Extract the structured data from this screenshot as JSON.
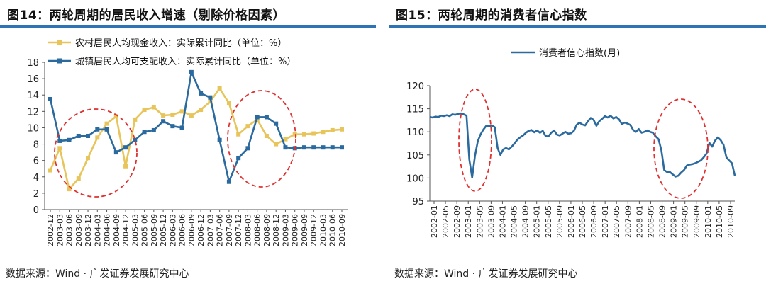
{
  "left": {
    "title": "图14：两轮周期的居民收入增速（剔除价格因素）",
    "source": "数据来源：Wind · 广发证券发展研究中心"
  },
  "right": {
    "title": "图15：两轮周期的消费者信心指数",
    "source": "数据来源：Wind · 广发证券发展研究中心"
  },
  "colors": {
    "rural": "#e8c55a",
    "urban": "#2b6a9e",
    "confidence": "#2b6a9e",
    "circle": "#e03030",
    "title_rule": "#2e74b5"
  },
  "chart_data": [
    {
      "type": "line",
      "title": "图14：两轮周期的居民收入增速（剔除价格因素）",
      "legend_position": "top-left",
      "ylim": [
        0,
        18
      ],
      "yticks": [
        0,
        2,
        4,
        6,
        8,
        10,
        12,
        14,
        16,
        18
      ],
      "x_tick_labels": [
        "2002-12",
        "2003-03",
        "2003-06",
        "2003-09",
        "2003-12",
        "2004-03",
        "2004-06",
        "2004-09",
        "2004-12",
        "2005-03",
        "2005-06",
        "2005-09",
        "2005-12",
        "2006-03",
        "2006-06",
        "2006-09",
        "2006-12",
        "2007-03",
        "2007-06",
        "2007-09",
        "2007-12",
        "2008-03",
        "2008-06",
        "2008-09",
        "2008-12",
        "2009-03",
        "2009-06",
        "2009-09",
        "2009-12",
        "2010-03",
        "2010-06",
        "2010-09"
      ],
      "series": [
        {
          "name": "农村居民人均现金收入：实际累计同比（单位：%）",
          "color": "#e8c55a",
          "values": [
            4.8,
            7.5,
            2.5,
            3.8,
            6.3,
            8.8,
            10.5,
            11.4,
            5.3,
            11.0,
            12.2,
            12.5,
            11.5,
            11.6,
            12.0,
            11.5,
            12.2,
            13.2,
            14.8,
            13.0,
            9.2,
            10.2,
            11.0,
            9.0,
            8.0,
            8.6,
            9.2,
            9.2,
            9.3,
            9.5,
            9.7,
            9.8
          ]
        },
        {
          "name": "城镇居民人均可支配收入：实际累计同比（单位：%）",
          "color": "#2b6a9e",
          "values": [
            13.5,
            8.4,
            8.5,
            9.0,
            9.0,
            9.8,
            9.8,
            7.0,
            7.6,
            8.5,
            9.5,
            9.7,
            10.8,
            10.2,
            10.0,
            16.8,
            14.2,
            13.7,
            8.5,
            3.4,
            6.3,
            7.5,
            11.3,
            11.3,
            10.5,
            7.6,
            7.5,
            7.6,
            7.6,
            7.6,
            7.6,
            7.6
          ]
        }
      ]
    },
    {
      "type": "line",
      "title": "图15：两轮周期的消费者信心指数",
      "legend_position": "top-center",
      "ylim": [
        95,
        120
      ],
      "yticks": [
        95,
        100,
        105,
        110,
        115,
        120
      ],
      "x_tick_labels": [
        "2002-01",
        "2002-05",
        "2002-09",
        "2003-01",
        "2003-05",
        "2003-09",
        "2004-01",
        "2004-05",
        "2004-09",
        "2005-01",
        "2005-05",
        "2005-09",
        "2006-01",
        "2006-05",
        "2006-09",
        "2007-01",
        "2007-05",
        "2007-09",
        "2008-01",
        "2008-05",
        "2008-09",
        "2009-01",
        "2009-05",
        "2009-09",
        "2010-01",
        "2010-05",
        "2010-09"
      ],
      "series": [
        {
          "name": "消费者信心指数(月)",
          "color": "#2b6a9e",
          "values": [
            113.2,
            113.1,
            113.3,
            113.2,
            113.5,
            113.4,
            113.6,
            113.4,
            113.8,
            113.7,
            113.9,
            114.0,
            113.8,
            113.5,
            104.0,
            100.1,
            104.8,
            108.0,
            109.5,
            110.5,
            111.3,
            111.2,
            111.4,
            111.0,
            106.5,
            105.0,
            106.2,
            106.5,
            106.2,
            106.8,
            107.5,
            108.3,
            108.8,
            109.2,
            109.8,
            110.2,
            110.4,
            109.9,
            110.3,
            109.8,
            110.2,
            109.1,
            109.0,
            109.8,
            110.3,
            109.4,
            109.2,
            109.6,
            110.0,
            109.6,
            109.7,
            110.2,
            111.5,
            112.0,
            111.6,
            111.4,
            112.3,
            113.0,
            112.6,
            111.3,
            112.3,
            112.8,
            113.4,
            113.1,
            113.5,
            112.9,
            113.2,
            112.7,
            111.7,
            112.0,
            111.8,
            111.5,
            110.4,
            110.0,
            110.6,
            109.8,
            110.0,
            110.3,
            110.0,
            109.8,
            109.0,
            108.4,
            106.0,
            101.7,
            101.3,
            101.3,
            100.8,
            100.3,
            100.5,
            101.2,
            101.7,
            102.7,
            102.9,
            103.0,
            103.2,
            103.5,
            103.8,
            104.5,
            105.3,
            107.6,
            106.8,
            108.1,
            108.8,
            108.2,
            107.2,
            104.5,
            103.8,
            103.2,
            100.5
          ]
        }
      ]
    }
  ]
}
